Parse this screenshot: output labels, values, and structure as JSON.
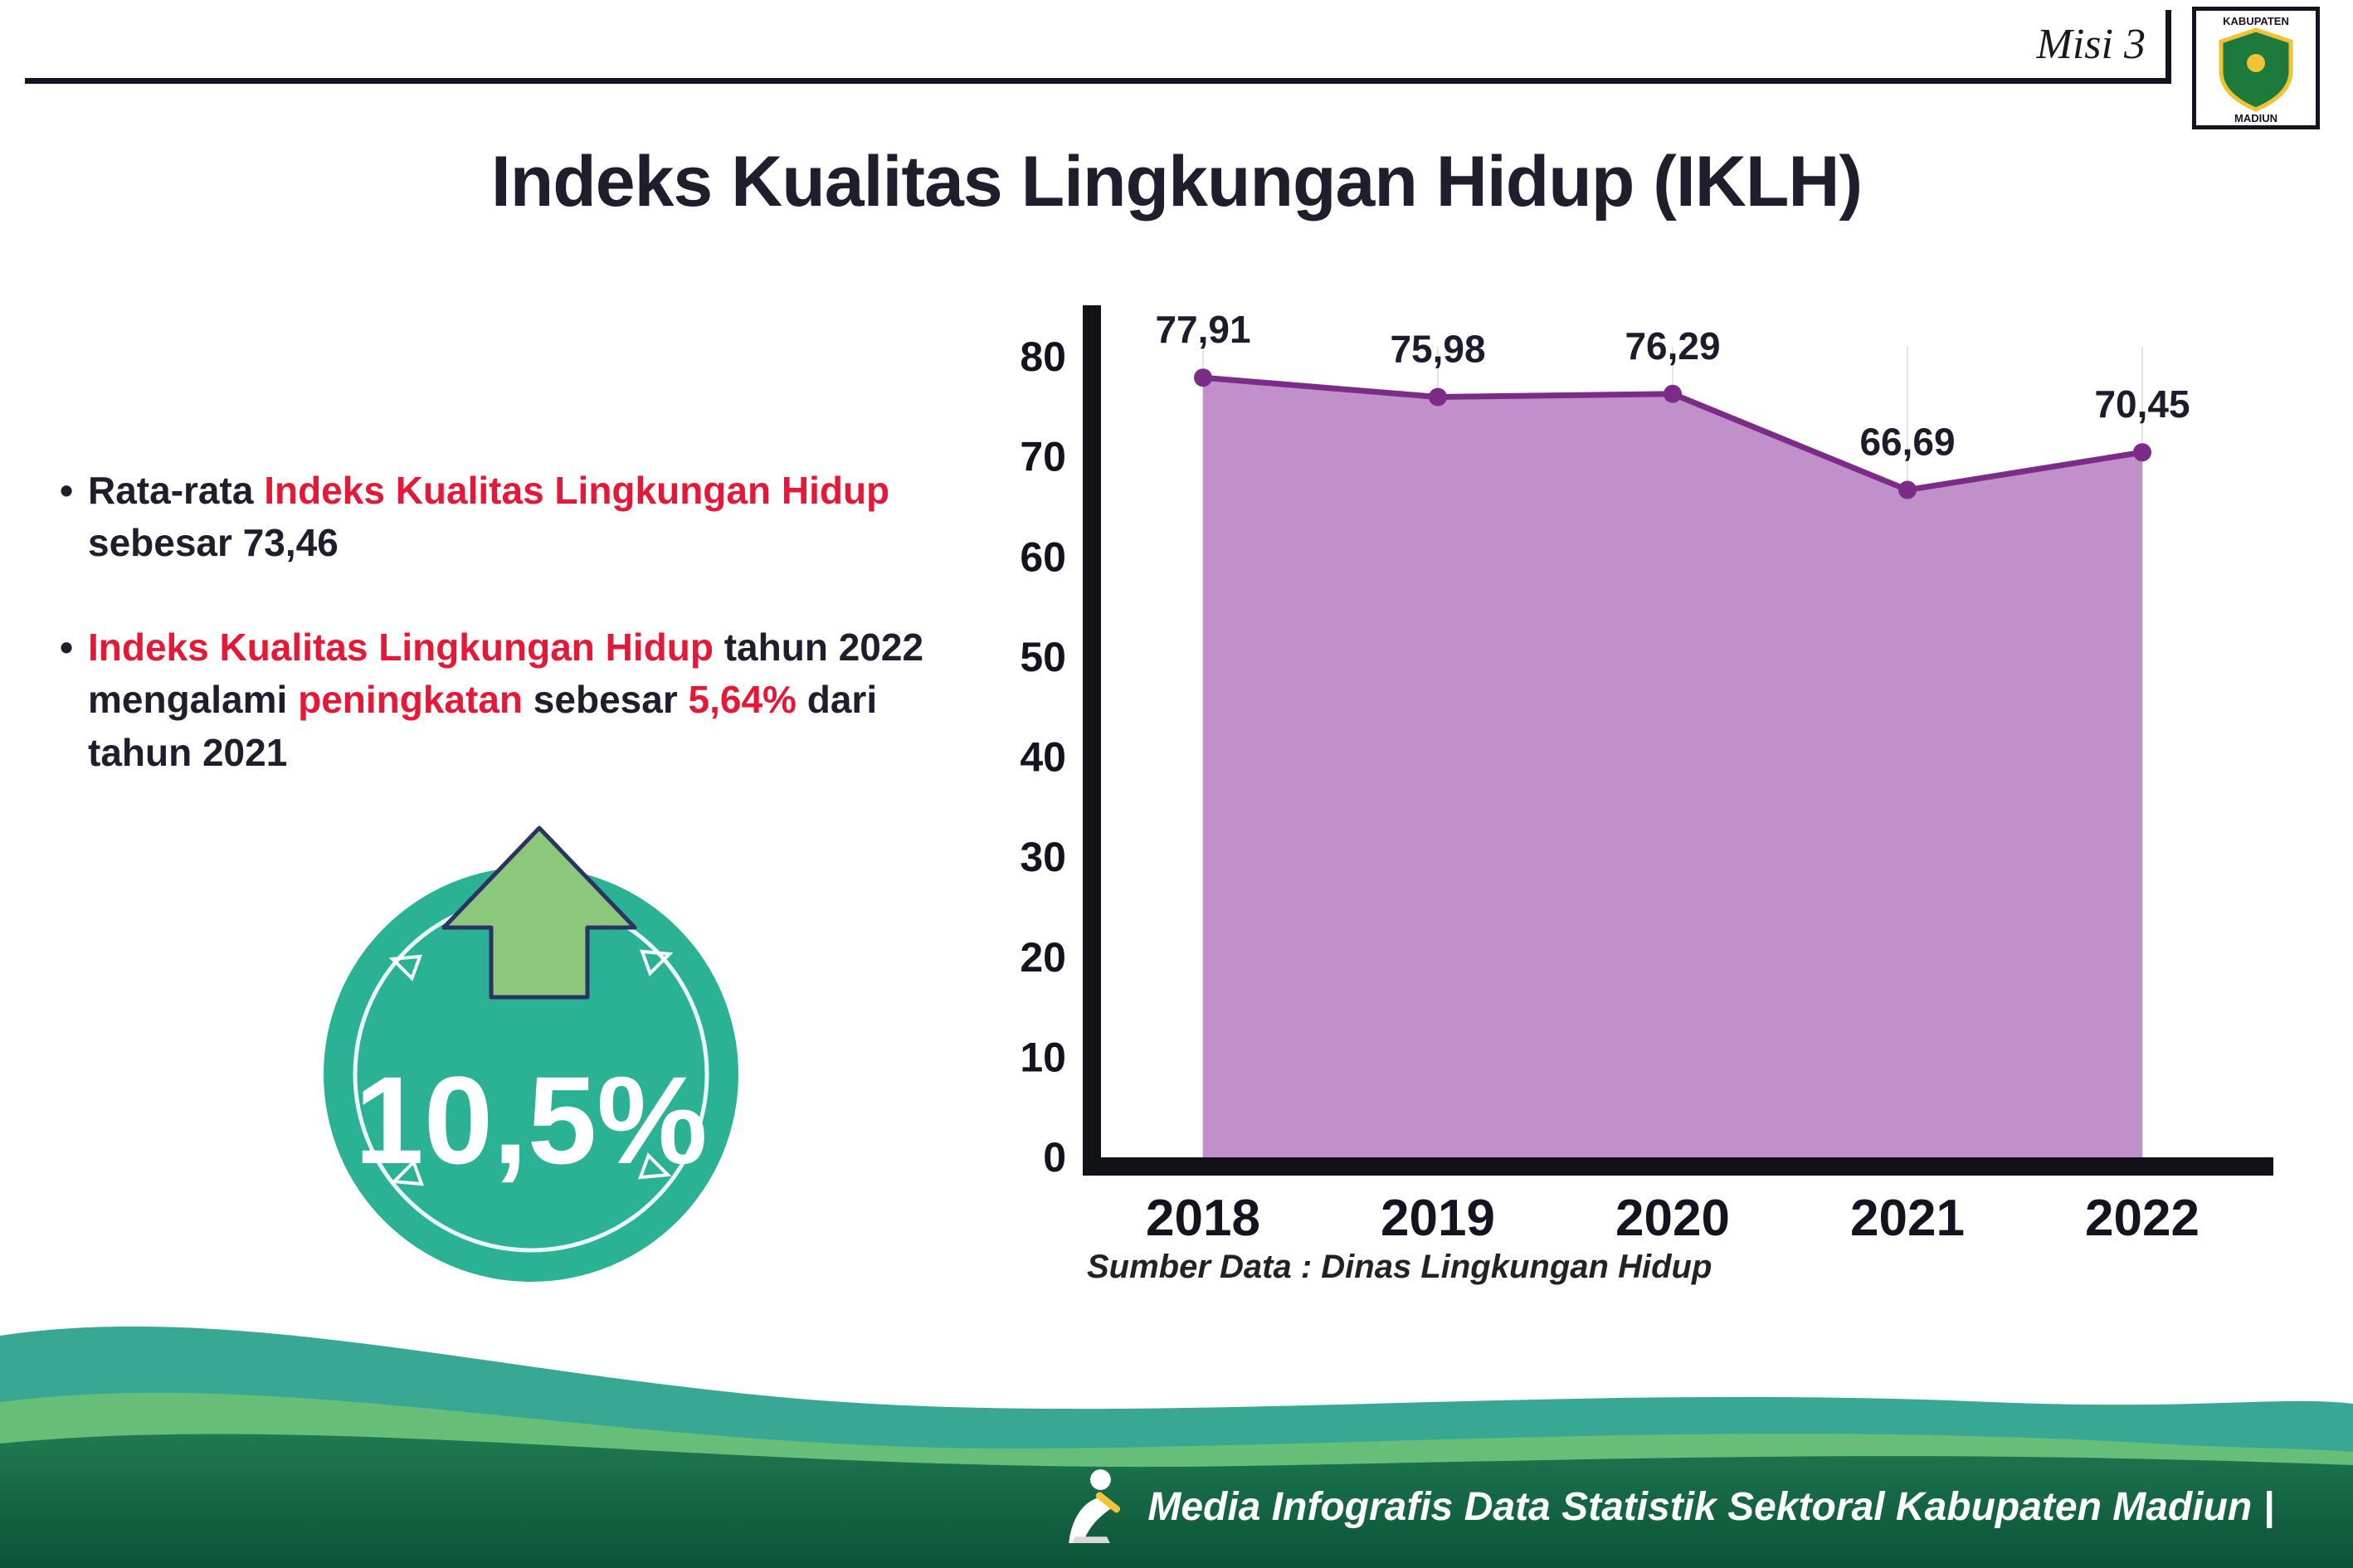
{
  "header": {
    "misi": "Misi 3",
    "logo": {
      "line1": "KABUPATEN",
      "line2": "MADIUN"
    }
  },
  "title": "Indeks Kualitas Lingkungan Hidup (IKLH)",
  "bullets": [
    {
      "parts": [
        {
          "text": "Rata-rata ",
          "style": "dark"
        },
        {
          "text": "Indeks Kualitas Lingkungan Hidup",
          "style": "red"
        },
        {
          "text": " sebesar 73,46",
          "style": "dark"
        }
      ]
    },
    {
      "parts": [
        {
          "text": "Indeks Kualitas Lingkungan Hidup",
          "style": "red"
        },
        {
          "text": " tahun 2022 mengalami ",
          "style": "dark"
        },
        {
          "text": "peningkatan",
          "style": "red"
        },
        {
          "text": " sebesar ",
          "style": "dark"
        },
        {
          "text": "5,64%",
          "style": "red"
        },
        {
          "text": " dari tahun 2021",
          "style": "dark"
        }
      ]
    }
  ],
  "badge": {
    "value": "10,5%",
    "circle_color": "#2BB295",
    "arrow_color": "#8CC87C",
    "arrow_outline": "#2B3363"
  },
  "chart_data": {
    "type": "area",
    "title": "",
    "xlabel": "",
    "ylabel": "",
    "categories": [
      "2018",
      "2019",
      "2020",
      "2021",
      "2022"
    ],
    "values": [
      77.91,
      75.98,
      76.29,
      66.69,
      70.45
    ],
    "value_labels": [
      "77,91",
      "75,98",
      "76,29",
      "66,69",
      "70,45"
    ],
    "ylim": [
      0,
      80
    ],
    "ytick_step": 10,
    "grid": "faint-vertical",
    "legend": "none",
    "line_color": "#7B2C86",
    "fill_color": "#C18FC9",
    "axis_color": "#111118",
    "source": "Sumber Data : Dinas Lingkungan Hidup"
  },
  "footer": {
    "text": "Media Infografis Data Statistik Sektoral Kabupaten Madiun |",
    "wave_teal": "#38A794",
    "wave_green": "#66BE79",
    "band_dark_top": "#1E7A50",
    "band_dark_bottom": "#0C5238"
  }
}
